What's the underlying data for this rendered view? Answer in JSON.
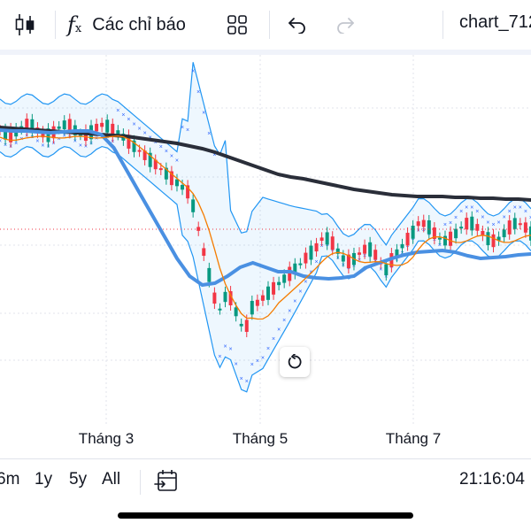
{
  "toolbar": {
    "candle_icon": "candlestick-icon",
    "indicators_label": "Các chỉ báo",
    "title": "chart_712"
  },
  "chart_data": {
    "type": "line",
    "xlabel": "",
    "ylabel": "",
    "x_tick_labels": [
      "Tháng 3",
      "Tháng 5",
      "Tháng 7"
    ],
    "series": [
      {
        "values": [
          142,
          143,
          144,
          145,
          146,
          147,
          148,
          149,
          150,
          151,
          152,
          154,
          156,
          158,
          160,
          163,
          166,
          170,
          175,
          180,
          185,
          190,
          195,
          198,
          200,
          203,
          206,
          209,
          212,
          214,
          216,
          218,
          219,
          220,
          220,
          220,
          221,
          221,
          222,
          222,
          223,
          223,
          224
        ]
      },
      {
        "values": [
          145,
          146,
          146,
          147,
          148,
          147,
          146,
          146,
          150,
          165,
          190,
          215,
          240,
          265,
          290,
          310,
          320,
          318,
          310,
          300,
          295,
          300,
          305,
          305,
          310,
          312,
          313,
          312,
          310,
          300,
          295,
          290,
          286,
          283,
          282,
          281,
          283,
          287,
          290,
          289,
          288,
          286,
          285
        ]
      }
    ]
  },
  "range_buttons": [
    "6m",
    "1y",
    "5y",
    "All"
  ],
  "clock": "21:16:04"
}
